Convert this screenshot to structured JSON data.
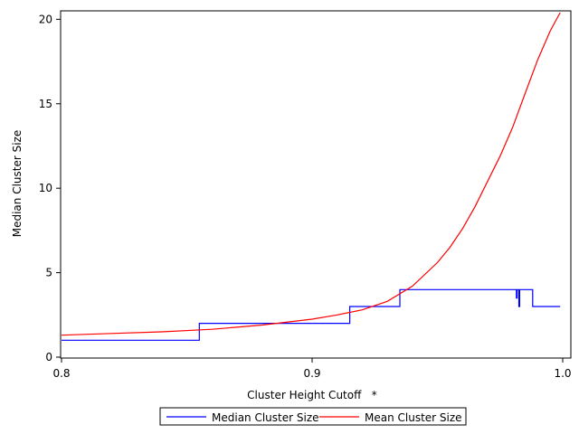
{
  "chart_data": {
    "type": "line",
    "title": "",
    "xlabel": "Cluster Height Cutoff   *",
    "ylabel": "Median Cluster Size",
    "xlim": [
      0.8,
      1.0
    ],
    "ylim": [
      0,
      20.5
    ],
    "x_ticks": [
      0.8,
      0.9,
      1.0
    ],
    "x_tick_labels": [
      "0.8",
      "0.9",
      "1.0"
    ],
    "y_ticks": [
      0,
      5,
      10,
      15,
      20
    ],
    "y_tick_labels": [
      "0",
      "5",
      "10",
      "15",
      "20"
    ],
    "grid": false,
    "legend_position": "bottom",
    "series": [
      {
        "name": "Median Cluster Size",
        "color": "#0000ff",
        "step": true,
        "points": [
          [
            0.8,
            1
          ],
          [
            0.855,
            1
          ],
          [
            0.855,
            2
          ],
          [
            0.915,
            2
          ],
          [
            0.915,
            3
          ],
          [
            0.935,
            3
          ],
          [
            0.935,
            4
          ],
          [
            0.9815,
            4
          ],
          [
            0.9815,
            3.5
          ],
          [
            0.9818,
            3.5
          ],
          [
            0.9818,
            4
          ],
          [
            0.9825,
            4
          ],
          [
            0.9825,
            3
          ],
          [
            0.9828,
            3
          ],
          [
            0.9828,
            4
          ],
          [
            0.988,
            4
          ],
          [
            0.988,
            3
          ],
          [
            0.999,
            3
          ]
        ]
      },
      {
        "name": "Mean Cluster Size",
        "color": "#ff0000",
        "step": false,
        "points": [
          [
            0.8,
            1.3
          ],
          [
            0.82,
            1.4
          ],
          [
            0.84,
            1.5
          ],
          [
            0.86,
            1.65
          ],
          [
            0.88,
            1.9
          ],
          [
            0.9,
            2.25
          ],
          [
            0.91,
            2.5
          ],
          [
            0.92,
            2.8
          ],
          [
            0.93,
            3.3
          ],
          [
            0.94,
            4.2
          ],
          [
            0.95,
            5.6
          ],
          [
            0.955,
            6.5
          ],
          [
            0.96,
            7.6
          ],
          [
            0.965,
            8.9
          ],
          [
            0.97,
            10.4
          ],
          [
            0.975,
            11.9
          ],
          [
            0.98,
            13.6
          ],
          [
            0.985,
            15.6
          ],
          [
            0.99,
            17.6
          ],
          [
            0.995,
            19.3
          ],
          [
            0.999,
            20.4
          ]
        ]
      }
    ]
  }
}
